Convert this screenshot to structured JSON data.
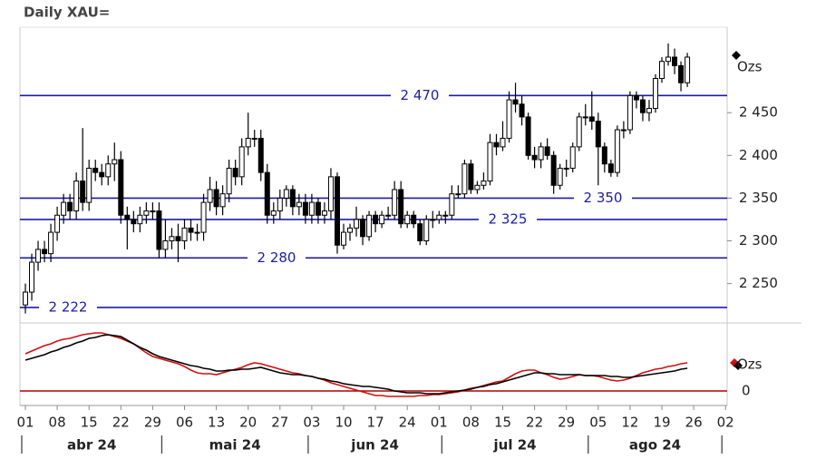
{
  "chart_data": [
    {
      "type": "candlestick",
      "title": "Daily XAU=",
      "series_label": "Ozs",
      "categories": [
        "01",
        null,
        null,
        null,
        null,
        "08",
        null,
        null,
        null,
        null,
        "15",
        null,
        null,
        null,
        null,
        "22",
        null,
        null,
        null,
        null,
        "29",
        null,
        null,
        null,
        null,
        "06",
        null,
        null,
        null,
        null,
        "13",
        null,
        null,
        null,
        null,
        "20",
        null,
        null,
        null,
        null,
        "27",
        null,
        null,
        null,
        null,
        "03",
        null,
        null,
        null,
        null,
        "10",
        null,
        null,
        null,
        null,
        "17",
        null,
        null,
        null,
        null,
        "24",
        null,
        null,
        null,
        null,
        "01",
        null,
        null,
        null,
        null,
        "08",
        null,
        null,
        null,
        null,
        "15",
        null,
        null,
        null,
        null,
        "22",
        null,
        null,
        null,
        null,
        "29",
        null,
        null,
        null,
        null,
        "05",
        null,
        null,
        null,
        null,
        "12",
        null,
        null,
        null,
        null,
        "19",
        null,
        null,
        null,
        null,
        "26",
        null,
        null,
        null,
        null,
        "02"
      ],
      "months": [
        "abr 24",
        "mai 24",
        "jun 24",
        "jul 24",
        "ago 24"
      ],
      "open": [
        2225,
        2240,
        2275,
        2290,
        2285,
        2310,
        2330,
        2345,
        2335,
        2370,
        2345,
        2385,
        2380,
        2375,
        2390,
        2395,
        2330,
        2325,
        2320,
        2330,
        2335,
        2335,
        2290,
        2300,
        2305,
        2300,
        2315,
        2310,
        2310,
        2345,
        2360,
        2340,
        2355,
        2385,
        2375,
        2410,
        2420,
        2420,
        2380,
        2330,
        2335,
        2350,
        2360,
        2340,
        2345,
        2330,
        2345,
        2330,
        2335,
        2375,
        2295,
        2310,
        2315,
        2325,
        2305,
        2330,
        2320,
        2330,
        2330,
        2360,
        2320,
        2330,
        2320,
        2300,
        2325,
        2325,
        2330,
        2330,
        2355,
        2355,
        2390,
        2360,
        2365,
        2370,
        2415,
        2410,
        2420,
        2465,
        2460,
        2445,
        2400,
        2395,
        2410,
        2400,
        2365,
        2385,
        2385,
        2410,
        2445,
        2445,
        2440,
        2410,
        2390,
        2380,
        2430,
        2430,
        2470,
        2465,
        2450,
        2455,
        2490,
        2510,
        2515,
        2505,
        2485,
        null,
        null,
        null,
        null,
        null,
        null
      ],
      "high": [
        2250,
        2285,
        2300,
        2300,
        2320,
        2340,
        2355,
        2355,
        2380,
        2432,
        2395,
        2395,
        2390,
        2400,
        2415,
        2405,
        2340,
        2335,
        2340,
        2345,
        2345,
        2345,
        2325,
        2315,
        2320,
        2325,
        2325,
        2320,
        2355,
        2375,
        2370,
        2365,
        2395,
        2395,
        2420,
        2450,
        2430,
        2430,
        2390,
        2345,
        2360,
        2365,
        2365,
        2355,
        2355,
        2355,
        2350,
        2345,
        2385,
        2380,
        2320,
        2320,
        2340,
        2330,
        2335,
        2335,
        2335,
        2340,
        2370,
        2370,
        2335,
        2335,
        2325,
        2330,
        2335,
        2335,
        2335,
        2365,
        2365,
        2395,
        2395,
        2370,
        2380,
        2425,
        2425,
        2440,
        2475,
        2485,
        2470,
        2450,
        2410,
        2415,
        2420,
        2405,
        2390,
        2395,
        2415,
        2450,
        2460,
        2475,
        2450,
        2415,
        2395,
        2435,
        2440,
        2475,
        2475,
        2470,
        2465,
        2495,
        2515,
        2531,
        2525,
        2510,
        2520,
        null,
        null,
        null,
        null,
        null,
        null
      ],
      "low": [
        2215,
        2230,
        2265,
        2275,
        2275,
        2300,
        2320,
        2325,
        2325,
        2335,
        2335,
        2370,
        2365,
        2365,
        2370,
        2320,
        2290,
        2310,
        2310,
        2320,
        2325,
        2280,
        2280,
        2290,
        2275,
        2290,
        2300,
        2300,
        2300,
        2335,
        2330,
        2330,
        2345,
        2365,
        2365,
        2400,
        2410,
        2370,
        2320,
        2320,
        2325,
        2340,
        2330,
        2330,
        2320,
        2320,
        2320,
        2320,
        2325,
        2285,
        2290,
        2300,
        2305,
        2295,
        2300,
        2310,
        2315,
        2325,
        2325,
        2315,
        2315,
        2315,
        2295,
        2295,
        2315,
        2320,
        2320,
        2325,
        2350,
        2350,
        2355,
        2355,
        2360,
        2365,
        2400,
        2405,
        2415,
        2450,
        2435,
        2395,
        2385,
        2385,
        2395,
        2355,
        2360,
        2375,
        2380,
        2405,
        2435,
        2430,
        2365,
        2380,
        2375,
        2375,
        2420,
        2425,
        2455,
        2440,
        2440,
        2450,
        2485,
        2505,
        2495,
        2475,
        2480,
        null,
        null,
        null,
        null,
        null,
        null
      ],
      "close": [
        2240,
        2275,
        2290,
        2285,
        2310,
        2330,
        2345,
        2335,
        2370,
        2345,
        2385,
        2380,
        2375,
        2390,
        2395,
        2330,
        2325,
        2320,
        2330,
        2335,
        2335,
        2290,
        2300,
        2305,
        2300,
        2315,
        2310,
        2310,
        2345,
        2360,
        2340,
        2355,
        2385,
        2375,
        2410,
        2420,
        2420,
        2380,
        2330,
        2335,
        2350,
        2360,
        2340,
        2345,
        2330,
        2345,
        2330,
        2335,
        2375,
        2295,
        2310,
        2315,
        2325,
        2305,
        2330,
        2320,
        2330,
        2330,
        2360,
        2320,
        2330,
        2320,
        2300,
        2325,
        2325,
        2330,
        2330,
        2355,
        2355,
        2390,
        2360,
        2365,
        2370,
        2415,
        2410,
        2420,
        2465,
        2460,
        2445,
        2400,
        2395,
        2410,
        2400,
        2365,
        2385,
        2385,
        2410,
        2445,
        2445,
        2440,
        2410,
        2390,
        2380,
        2430,
        2430,
        2470,
        2465,
        2450,
        2455,
        2490,
        2510,
        2515,
        2505,
        2485,
        2515,
        null,
        null,
        null,
        null,
        null,
        null
      ],
      "ylim": [
        2205,
        2550
      ],
      "yticks": [
        {
          "value": 2250,
          "label": "2 250"
        },
        {
          "value": 2300,
          "label": "2 300"
        },
        {
          "value": 2350,
          "label": "2 350"
        },
        {
          "value": 2400,
          "label": "2 400"
        },
        {
          "value": 2450,
          "label": "2 450"
        }
      ],
      "levels": [
        {
          "value": 2470,
          "label": "2 470"
        },
        {
          "value": 2350,
          "label": "2 350"
        },
        {
          "value": 2325,
          "label": "2 325"
        },
        {
          "value": 2280,
          "label": "2 280"
        },
        {
          "value": 2222,
          "label": "2 222"
        }
      ],
      "level_color": "#1c1ca8",
      "up_color": "#ffffff",
      "down_color": "#000000"
    },
    {
      "type": "line",
      "series_label": "Ozs",
      "series": [
        {
          "color": "#d01010",
          "values": [
            41,
            44,
            47,
            50,
            52,
            55,
            57,
            58,
            60,
            62,
            63,
            64,
            64,
            62,
            60,
            58,
            55,
            52,
            47,
            42,
            38,
            36,
            34,
            32,
            30,
            27,
            23,
            20,
            19,
            19,
            18,
            20,
            22,
            24,
            26,
            29,
            31,
            30,
            28,
            26,
            24,
            22,
            20,
            19,
            17,
            16,
            14,
            12,
            9,
            7,
            5,
            3,
            1,
            -1,
            -3,
            -5,
            -5,
            -6,
            -6,
            -6,
            -6,
            -6,
            -5,
            -5,
            -4,
            -4,
            -3,
            -2,
            -1,
            1,
            3,
            4,
            6,
            8,
            10,
            11,
            15,
            19,
            22,
            23,
            23,
            20,
            18,
            15,
            13,
            14,
            16,
            18,
            17,
            17,
            16,
            14,
            12,
            11,
            12,
            14,
            17,
            20,
            22,
            24,
            25,
            27,
            28,
            30,
            31,
            null,
            null,
            null,
            null,
            null,
            null
          ]
        },
        {
          "color": "#000000",
          "values": [
            34,
            36,
            38,
            40,
            43,
            45,
            48,
            50,
            53,
            55,
            58,
            59,
            61,
            62,
            61,
            60,
            56,
            52,
            48,
            45,
            41,
            38,
            36,
            34,
            32,
            30,
            28,
            27,
            25,
            24,
            22,
            22,
            23,
            23,
            24,
            24,
            25,
            26,
            24,
            22,
            20,
            19,
            18,
            18,
            17,
            16,
            14,
            13,
            11,
            10,
            8,
            7,
            6,
            5,
            5,
            4,
            3,
            2,
            0,
            -1,
            -2,
            -2,
            -2,
            -3,
            -3,
            -3,
            -2,
            -1,
            0,
            1,
            2,
            4,
            5,
            7,
            8,
            10,
            12,
            14,
            16,
            18,
            20,
            20,
            19,
            19,
            18,
            18,
            18,
            18,
            17,
            17,
            17,
            17,
            16,
            16,
            15,
            15,
            16,
            17,
            18,
            19,
            20,
            21,
            22,
            24,
            25,
            null,
            null,
            null,
            null,
            null,
            null
          ]
        }
      ],
      "ylim": [
        -16,
        73
      ],
      "yticks": [
        0
      ],
      "grid": true,
      "grid_color": "#b00000"
    }
  ]
}
